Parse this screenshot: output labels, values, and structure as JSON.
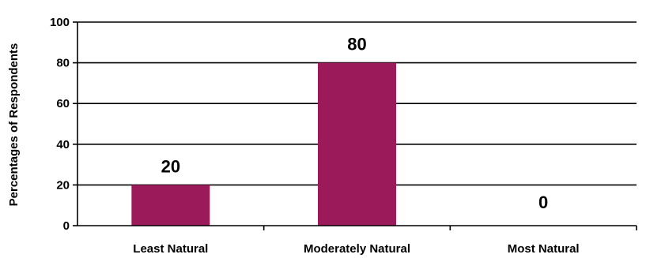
{
  "chart_data": {
    "type": "bar",
    "title": "",
    "xlabel": "",
    "ylabel": "Percentages of Respondents",
    "ylim": [
      0,
      100
    ],
    "yticks": [
      0,
      20,
      40,
      60,
      80,
      100
    ],
    "grid": true,
    "legend": "none",
    "categories": [
      "Least Natural",
      "Moderately Natural",
      "Most Natural"
    ],
    "values": [
      20,
      80,
      0
    ],
    "data_labels": [
      "20",
      "80",
      "0"
    ],
    "bar_color": "#9b1b5a",
    "axis_color": "#000000"
  }
}
